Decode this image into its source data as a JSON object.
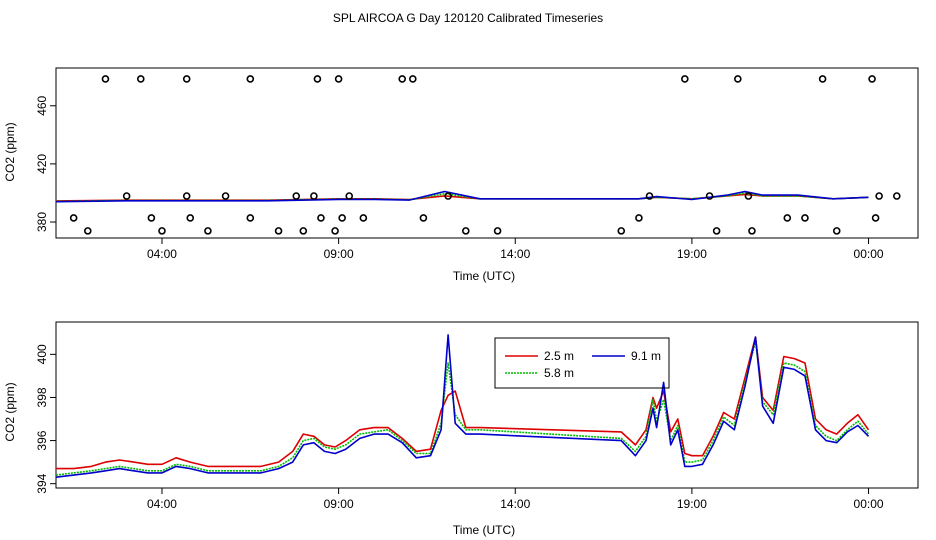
{
  "title": "SPL AIRCOA G  Day 120120  Calibrated Timeseries",
  "colors": {
    "s25": "#dd0000",
    "s58": "#00bb00",
    "s91": "#0000cc",
    "axis": "#000000"
  },
  "chart_data": [
    {
      "type": "line",
      "xlabel": "Time (UTC)",
      "ylabel": "CO2 (ppm)",
      "xlim": [
        0,
        24.4
      ],
      "ylim": [
        369,
        486
      ],
      "xticks": [
        3,
        8,
        13,
        18,
        23
      ],
      "xtick_labels": [
        "04:00",
        "09:00",
        "14:00",
        "19:00",
        "00:00"
      ],
      "yticks": [
        380,
        420,
        460
      ],
      "ytick_labels": [
        "380",
        "420",
        "460"
      ],
      "grid": false,
      "legend": "none",
      "series": [
        {
          "key": "s25",
          "x": [
            0,
            2,
            4,
            6,
            8,
            9,
            10,
            11,
            12,
            14,
            16,
            16.5,
            17,
            18,
            19,
            19.5,
            20,
            21,
            22,
            23
          ],
          "y": [
            394.5,
            395,
            395,
            395,
            396,
            396,
            395.5,
            398,
            396,
            396,
            396,
            396,
            397,
            396,
            398,
            399,
            398,
            398,
            396,
            397
          ]
        },
        {
          "key": "s58",
          "x": [
            0,
            2,
            4,
            6,
            8,
            9,
            10,
            11,
            12,
            14,
            16,
            16.5,
            17,
            18,
            19,
            19.5,
            20,
            21,
            22,
            23
          ],
          "y": [
            394.2,
            394.8,
            394.8,
            394.8,
            395.8,
            395.8,
            395.3,
            399.5,
            396,
            396,
            396,
            396,
            397,
            396,
            398,
            400,
            398,
            398,
            396,
            397
          ]
        },
        {
          "key": "s91",
          "x": [
            0,
            2,
            4,
            6,
            8,
            9,
            10,
            11,
            12,
            14,
            16,
            16.5,
            17,
            18,
            19,
            19.5,
            20,
            21,
            22,
            23
          ],
          "y": [
            394,
            394.6,
            394.6,
            394.6,
            395.6,
            395.6,
            395.1,
            401,
            396,
            396,
            396,
            396,
            397.5,
            395.5,
            398.5,
            401,
            398.5,
            398.5,
            396,
            397
          ]
        }
      ],
      "flagged_points": {
        "x": [
          2.0,
          3.7,
          4.8,
          6.8,
          7.3,
          8.3,
          11.1,
          16.8,
          18.5,
          19.6,
          23.3,
          23.8,
          0.5,
          2.7,
          3.8,
          5.5,
          7.5,
          8.1,
          8.7,
          10.4,
          16.5,
          20.7,
          21.2,
          23.2,
          1.4,
          2.4,
          3.7,
          5.5,
          7.4,
          8.0,
          9.8,
          10.1,
          17.8,
          19.3,
          21.7,
          23.1,
          0.9,
          3.0,
          4.3,
          6.3,
          7.0,
          7.9,
          11.6,
          12.5,
          16.0,
          18.7,
          19.7,
          22.1
        ],
        "y": [
          397.9,
          397.9,
          397.9,
          397.9,
          397.9,
          397.9,
          397.9,
          397.9,
          397.9,
          397.9,
          397.9,
          397.9,
          382.8,
          382.8,
          382.8,
          382.8,
          382.8,
          382.8,
          382.8,
          382.8,
          382.8,
          382.8,
          382.8,
          382.8,
          478.5,
          478.5,
          478.5,
          478.5,
          478.5,
          478.5,
          478.5,
          478.5,
          478.5,
          478.5,
          478.5,
          478.5,
          373.9,
          373.9,
          373.9,
          373.9,
          373.9,
          373.9,
          373.9,
          373.9,
          373.9,
          373.9,
          373.9,
          373.9
        ]
      }
    },
    {
      "type": "line",
      "xlabel": "Time (UTC)",
      "ylabel": "CO2 (ppm)",
      "xlim": [
        0,
        24.4
      ],
      "ylim": [
        393.8,
        401.5
      ],
      "xticks": [
        3,
        8,
        13,
        18,
        23
      ],
      "xtick_labels": [
        "04:00",
        "09:00",
        "14:00",
        "19:00",
        "00:00"
      ],
      "yticks": [
        394,
        396,
        398,
        400
      ],
      "ytick_labels": [
        "394",
        "396",
        "398",
        "400"
      ],
      "grid": false,
      "legend": "top-center",
      "legend_entries": [
        "2.5 m",
        "9.1 m",
        "5.8 m"
      ],
      "series": [
        {
          "key": "s25",
          "name": "2.5 m",
          "x": [
            0,
            0.5,
            1,
            1.4,
            1.8,
            2.2,
            2.6,
            3.0,
            3.4,
            3.8,
            4.3,
            4.8,
            5.3,
            5.8,
            6.3,
            6.7,
            7.0,
            7.3,
            7.6,
            7.9,
            8.2,
            8.6,
            9.0,
            9.4,
            9.8,
            10.2,
            10.6,
            10.9,
            11.1,
            11.3,
            11.6,
            12.0,
            16.0,
            16.4,
            16.7,
            16.9,
            17.0,
            17.2,
            17.4,
            17.6,
            17.8,
            18.0,
            18.3,
            18.6,
            18.9,
            19.2,
            19.5,
            19.8,
            20.0,
            20.3,
            20.6,
            20.9,
            21.2,
            21.5,
            21.8,
            22.1,
            22.4,
            22.7,
            23.0
          ],
          "y": [
            394.7,
            394.7,
            394.8,
            395.0,
            395.1,
            395.0,
            394.9,
            394.9,
            395.2,
            395.0,
            394.8,
            394.8,
            394.8,
            394.8,
            395.0,
            395.5,
            396.3,
            396.2,
            395.8,
            395.7,
            396.0,
            396.5,
            396.6,
            396.6,
            396.1,
            395.5,
            395.6,
            397.4,
            398.1,
            398.3,
            396.6,
            396.6,
            396.4,
            395.8,
            396.5,
            398.0,
            397.5,
            398.3,
            396.4,
            397.0,
            395.4,
            395.3,
            395.3,
            396.2,
            397.3,
            397.0,
            398.9,
            400.8,
            398.0,
            397.4,
            399.9,
            399.8,
            399.6,
            397.0,
            396.5,
            396.3,
            396.8,
            397.2,
            396.5
          ]
        },
        {
          "key": "s58",
          "name": "5.8 m",
          "x": [
            0,
            0.5,
            1,
            1.4,
            1.8,
            2.2,
            2.6,
            3.0,
            3.4,
            3.8,
            4.3,
            4.8,
            5.3,
            5.8,
            6.3,
            6.7,
            7.0,
            7.3,
            7.6,
            7.9,
            8.2,
            8.6,
            9.0,
            9.4,
            9.8,
            10.2,
            10.6,
            10.9,
            11.1,
            11.3,
            11.6,
            12.0,
            16.0,
            16.4,
            16.7,
            16.9,
            17.0,
            17.2,
            17.4,
            17.6,
            17.8,
            18.0,
            18.3,
            18.6,
            18.9,
            19.2,
            19.5,
            19.8,
            20.0,
            20.3,
            20.6,
            20.9,
            21.2,
            21.5,
            21.8,
            22.1,
            22.4,
            22.7,
            23.0
          ],
          "y": [
            394.4,
            394.5,
            394.6,
            394.7,
            394.8,
            394.7,
            394.6,
            394.6,
            394.9,
            394.8,
            394.6,
            394.6,
            394.6,
            394.6,
            394.8,
            395.2,
            396.0,
            396.1,
            395.7,
            395.6,
            395.8,
            396.3,
            396.4,
            396.5,
            396.0,
            395.4,
            395.4,
            396.8,
            399.6,
            397.2,
            396.5,
            396.5,
            396.1,
            395.5,
            396.2,
            397.9,
            396.9,
            397.9,
            396.0,
            396.7,
            395.0,
            395.0,
            395.1,
            396.0,
            397.1,
            396.7,
            398.7,
            400.6,
            397.8,
            397.2,
            399.6,
            399.5,
            399.2,
            396.7,
            396.2,
            396.0,
            396.5,
            396.9,
            396.3
          ]
        },
        {
          "key": "s91",
          "name": "9.1 m",
          "x": [
            0,
            0.5,
            1,
            1.4,
            1.8,
            2.2,
            2.6,
            3.0,
            3.4,
            3.8,
            4.3,
            4.8,
            5.3,
            5.8,
            6.3,
            6.7,
            7.0,
            7.3,
            7.6,
            7.9,
            8.2,
            8.6,
            9.0,
            9.4,
            9.8,
            10.2,
            10.6,
            10.9,
            11.1,
            11.3,
            11.6,
            12.0,
            16.0,
            16.4,
            16.7,
            16.9,
            17.0,
            17.2,
            17.4,
            17.6,
            17.8,
            18.0,
            18.3,
            18.6,
            18.9,
            19.2,
            19.5,
            19.8,
            20.0,
            20.3,
            20.6,
            20.9,
            21.2,
            21.5,
            21.8,
            22.1,
            22.4,
            22.7,
            23.0
          ],
          "y": [
            394.3,
            394.4,
            394.5,
            394.6,
            394.7,
            394.6,
            394.5,
            394.5,
            394.8,
            394.7,
            394.5,
            394.5,
            394.5,
            394.5,
            394.7,
            395.0,
            395.8,
            395.9,
            395.5,
            395.4,
            395.6,
            396.1,
            396.3,
            396.3,
            395.9,
            395.2,
            395.3,
            396.5,
            400.9,
            396.8,
            396.3,
            396.3,
            396.0,
            395.3,
            396.0,
            397.5,
            396.6,
            398.7,
            395.8,
            396.5,
            394.8,
            394.8,
            394.9,
            395.8,
            396.9,
            396.5,
            398.5,
            400.8,
            397.6,
            396.8,
            399.4,
            399.3,
            399.0,
            396.5,
            396.0,
            395.9,
            396.4,
            396.7,
            396.2
          ]
        }
      ]
    }
  ]
}
